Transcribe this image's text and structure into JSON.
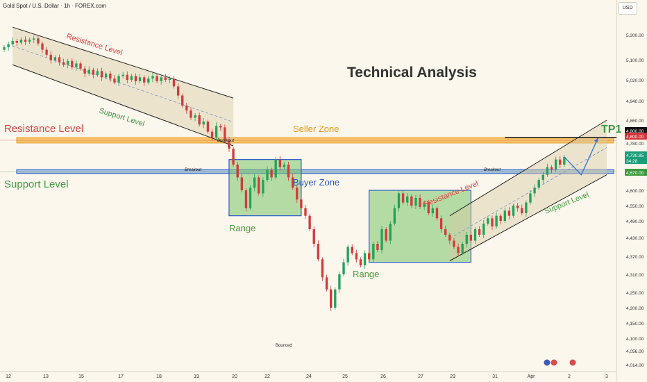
{
  "header": {
    "symbol_title": "Gold Spot / U.S. Dollar · 1h · FOREX.com",
    "currency_button": "USD"
  },
  "colors": {
    "background": "#fbf7ed",
    "bull": "#22a35a",
    "bear": "#d33a3a",
    "resistance_text": "#e04040",
    "support_text": "#3f9a3f",
    "seller_zone_fill": "#f3b13c",
    "buyer_zone_fill": "#5b8fcf",
    "range_box_fill": "#7cc46a",
    "range_box_border": "#2b57c9",
    "zone_label_orange": "#e6991a",
    "zone_label_blue": "#2b57c9",
    "range_label_green": "#4e9b3e",
    "tp_green": "#3a9a46",
    "current_price_bg": "#1c9d7a",
    "tp_price_bg": "#d3343a",
    "projection_blue": "#3d78d8"
  },
  "chart_data": {
    "type": "candlestick",
    "title": "Technical Analysis",
    "instrument": "Gold Spot / U.S. Dollar",
    "timeframe": "1h",
    "y_axis": {
      "ticks": [
        5200,
        5100,
        5020,
        4940,
        4860,
        4780,
        4670,
        4600,
        4550,
        4490,
        4430,
        4370,
        4310,
        4250,
        4200,
        4150,
        4100,
        4056,
        4014
      ],
      "tick_labels": [
        "5,200.00",
        "5,100.00",
        "5,020.00",
        "4,940.00",
        "4,860.00",
        "4,780.00",
        "4,670.00",
        "4,600.00",
        "4,550.00",
        "4,490.00",
        "4,430.00",
        "4,370.00",
        "4,310.00",
        "4,250.00",
        "4,200.00",
        "4,150.00",
        "4,100.00",
        "4,056.00",
        "4,014.00"
      ]
    },
    "x_axis": {
      "tick_labels": [
        "12",
        "13",
        "15",
        "17",
        "18",
        "19",
        "20",
        "22",
        "24",
        "25",
        "26",
        "27",
        "29",
        "31",
        "Apr",
        "2",
        "3"
      ]
    },
    "price_markers": {
      "tp_line_price": "4,800.00",
      "current_price": "4,730.85",
      "countdown": "34:28",
      "breakout_level": "4,670.00"
    },
    "price_series": [
      {
        "x": 0,
        "o": 5140,
        "c": 5150
      },
      {
        "x": 1,
        "o": 5150,
        "c": 5162
      },
      {
        "x": 2,
        "o": 5162,
        "c": 5175
      },
      {
        "x": 3,
        "o": 5175,
        "c": 5168
      },
      {
        "x": 4,
        "o": 5168,
        "c": 5180
      },
      {
        "x": 5,
        "o": 5180,
        "c": 5172
      },
      {
        "x": 6,
        "o": 5172,
        "c": 5180
      },
      {
        "x": 7,
        "o": 5180,
        "c": 5185
      },
      {
        "x": 8,
        "o": 5185,
        "c": 5165
      },
      {
        "x": 9,
        "o": 5165,
        "c": 5140
      },
      {
        "x": 10,
        "o": 5140,
        "c": 5120
      },
      {
        "x": 11,
        "o": 5120,
        "c": 5098
      },
      {
        "x": 12,
        "o": 5098,
        "c": 5110
      },
      {
        "x": 13,
        "o": 5110,
        "c": 5090
      },
      {
        "x": 14,
        "o": 5090,
        "c": 5080
      },
      {
        "x": 15,
        "o": 5080,
        "c": 5095
      },
      {
        "x": 16,
        "o": 5095,
        "c": 5070
      },
      {
        "x": 17,
        "o": 5070,
        "c": 5085
      },
      {
        "x": 18,
        "o": 5085,
        "c": 5065
      },
      {
        "x": 19,
        "o": 5065,
        "c": 5045
      },
      {
        "x": 20,
        "o": 5045,
        "c": 5060
      },
      {
        "x": 21,
        "o": 5060,
        "c": 5040
      },
      {
        "x": 22,
        "o": 5040,
        "c": 5055
      },
      {
        "x": 23,
        "o": 5055,
        "c": 5030
      },
      {
        "x": 24,
        "o": 5030,
        "c": 5045
      },
      {
        "x": 25,
        "o": 5045,
        "c": 5025
      },
      {
        "x": 26,
        "o": 5025,
        "c": 5010
      },
      {
        "x": 27,
        "o": 5010,
        "c": 5035
      },
      {
        "x": 28,
        "o": 5035,
        "c": 5040
      },
      {
        "x": 29,
        "o": 5040,
        "c": 5020
      },
      {
        "x": 30,
        "o": 5020,
        "c": 5035
      },
      {
        "x": 31,
        "o": 5035,
        "c": 5015
      },
      {
        "x": 32,
        "o": 5015,
        "c": 5030
      },
      {
        "x": 33,
        "o": 5030,
        "c": 5010
      },
      {
        "x": 34,
        "o": 5010,
        "c": 5025
      },
      {
        "x": 35,
        "o": 5025,
        "c": 5035
      },
      {
        "x": 36,
        "o": 5035,
        "c": 5015
      },
      {
        "x": 37,
        "o": 5015,
        "c": 5030
      },
      {
        "x": 38,
        "o": 5030,
        "c": 5020
      },
      {
        "x": 39,
        "o": 5020,
        "c": 5025
      },
      {
        "x": 40,
        "o": 5025,
        "c": 4995
      },
      {
        "x": 41,
        "o": 4995,
        "c": 4960
      },
      {
        "x": 42,
        "o": 4960,
        "c": 4920
      },
      {
        "x": 43,
        "o": 4920,
        "c": 4900
      },
      {
        "x": 44,
        "o": 4900,
        "c": 4870
      },
      {
        "x": 45,
        "o": 4870,
        "c": 4880
      },
      {
        "x": 46,
        "o": 4880,
        "c": 4845
      },
      {
        "x": 47,
        "o": 4845,
        "c": 4855
      },
      {
        "x": 48,
        "o": 4855,
        "c": 4820
      },
      {
        "x": 49,
        "o": 4820,
        "c": 4800
      },
      {
        "x": 50,
        "o": 4800,
        "c": 4840
      },
      {
        "x": 51,
        "o": 4840,
        "c": 4835
      },
      {
        "x": 52,
        "o": 4835,
        "c": 4790
      },
      {
        "x": 53,
        "o": 4790,
        "c": 4760
      },
      {
        "x": 54,
        "o": 4760,
        "c": 4700
      },
      {
        "x": 55,
        "o": 4700,
        "c": 4650
      },
      {
        "x": 56,
        "o": 4650,
        "c": 4600
      },
      {
        "x": 57,
        "o": 4600,
        "c": 4540
      },
      {
        "x": 58,
        "o": 4540,
        "c": 4610
      },
      {
        "x": 59,
        "o": 4610,
        "c": 4650
      },
      {
        "x": 60,
        "o": 4650,
        "c": 4590
      },
      {
        "x": 61,
        "o": 4590,
        "c": 4640
      },
      {
        "x": 62,
        "o": 4640,
        "c": 4680
      },
      {
        "x": 63,
        "o": 4680,
        "c": 4650
      },
      {
        "x": 64,
        "o": 4650,
        "c": 4720
      },
      {
        "x": 65,
        "o": 4720,
        "c": 4690
      },
      {
        "x": 66,
        "o": 4690,
        "c": 4700
      },
      {
        "x": 67,
        "o": 4700,
        "c": 4650
      },
      {
        "x": 68,
        "o": 4650,
        "c": 4610
      },
      {
        "x": 69,
        "o": 4610,
        "c": 4570
      },
      {
        "x": 70,
        "o": 4570,
        "c": 4540
      },
      {
        "x": 71,
        "o": 4540,
        "c": 4510
      },
      {
        "x": 72,
        "o": 4510,
        "c": 4460
      },
      {
        "x": 73,
        "o": 4460,
        "c": 4410
      },
      {
        "x": 74,
        "o": 4410,
        "c": 4360
      },
      {
        "x": 75,
        "o": 4360,
        "c": 4300
      },
      {
        "x": 76,
        "o": 4300,
        "c": 4260
      },
      {
        "x": 77,
        "o": 4260,
        "c": 4200
      },
      {
        "x": 78,
        "o": 4200,
        "c": 4260
      },
      {
        "x": 79,
        "o": 4260,
        "c": 4310
      },
      {
        "x": 80,
        "o": 4310,
        "c": 4350
      },
      {
        "x": 81,
        "o": 4350,
        "c": 4400
      },
      {
        "x": 82,
        "o": 4400,
        "c": 4380
      },
      {
        "x": 83,
        "o": 4380,
        "c": 4360
      },
      {
        "x": 84,
        "o": 4360,
        "c": 4340
      },
      {
        "x": 85,
        "o": 4340,
        "c": 4380
      },
      {
        "x": 86,
        "o": 4380,
        "c": 4360
      },
      {
        "x": 87,
        "o": 4360,
        "c": 4410
      },
      {
        "x": 88,
        "o": 4410,
        "c": 4390
      },
      {
        "x": 89,
        "o": 4390,
        "c": 4460
      },
      {
        "x": 90,
        "o": 4460,
        "c": 4420
      },
      {
        "x": 91,
        "o": 4420,
        "c": 4480
      },
      {
        "x": 92,
        "o": 4480,
        "c": 4540
      },
      {
        "x": 93,
        "o": 4540,
        "c": 4590
      },
      {
        "x": 94,
        "o": 4590,
        "c": 4560
      },
      {
        "x": 95,
        "o": 4560,
        "c": 4580
      },
      {
        "x": 96,
        "o": 4580,
        "c": 4550
      },
      {
        "x": 97,
        "o": 4550,
        "c": 4575
      },
      {
        "x": 98,
        "o": 4575,
        "c": 4545
      },
      {
        "x": 99,
        "o": 4545,
        "c": 4560
      },
      {
        "x": 100,
        "o": 4560,
        "c": 4520
      },
      {
        "x": 101,
        "o": 4520,
        "c": 4540
      },
      {
        "x": 102,
        "o": 4540,
        "c": 4500
      },
      {
        "x": 103,
        "o": 4500,
        "c": 4460
      },
      {
        "x": 104,
        "o": 4460,
        "c": 4440
      },
      {
        "x": 105,
        "o": 4440,
        "c": 4420
      },
      {
        "x": 106,
        "o": 4420,
        "c": 4400
      },
      {
        "x": 107,
        "o": 4400,
        "c": 4380
      },
      {
        "x": 108,
        "o": 4380,
        "c": 4410
      },
      {
        "x": 109,
        "o": 4410,
        "c": 4440
      },
      {
        "x": 110,
        "o": 4440,
        "c": 4420
      },
      {
        "x": 111,
        "o": 4420,
        "c": 4460
      },
      {
        "x": 112,
        "o": 4460,
        "c": 4440
      },
      {
        "x": 113,
        "o": 4440,
        "c": 4480
      },
      {
        "x": 114,
        "o": 4480,
        "c": 4500
      },
      {
        "x": 115,
        "o": 4500,
        "c": 4470
      },
      {
        "x": 116,
        "o": 4470,
        "c": 4510
      },
      {
        "x": 117,
        "o": 4510,
        "c": 4490
      },
      {
        "x": 118,
        "o": 4490,
        "c": 4530
      },
      {
        "x": 119,
        "o": 4530,
        "c": 4510
      },
      {
        "x": 120,
        "o": 4510,
        "c": 4550
      },
      {
        "x": 121,
        "o": 4550,
        "c": 4540
      },
      {
        "x": 122,
        "o": 4540,
        "c": 4520
      },
      {
        "x": 123,
        "o": 4520,
        "c": 4560
      },
      {
        "x": 124,
        "o": 4560,
        "c": 4590
      },
      {
        "x": 125,
        "o": 4590,
        "c": 4610
      },
      {
        "x": 126,
        "o": 4610,
        "c": 4640
      },
      {
        "x": 127,
        "o": 4640,
        "c": 4660
      },
      {
        "x": 128,
        "o": 4660,
        "c": 4690
      },
      {
        "x": 129,
        "o": 4690,
        "c": 4680
      },
      {
        "x": 130,
        "o": 4680,
        "c": 4720
      },
      {
        "x": 131,
        "o": 4720,
        "c": 4700
      },
      {
        "x": 132,
        "o": 4700,
        "c": 4730
      }
    ],
    "projection": {
      "label": "",
      "points": [
        {
          "x": 132,
          "y": 4730
        },
        {
          "x": 136,
          "y": 4660
        },
        {
          "x": 140,
          "y": 4800
        }
      ]
    },
    "zones": {
      "seller_zone": {
        "label": "Seller Zone",
        "from": 4780,
        "to": 4800
      },
      "buyer_zone": {
        "label": "Buyer Zone",
        "from": 4665,
        "to": 4680
      },
      "range_1": {
        "label": "Range",
        "x_from": 53,
        "x_to": 70,
        "y_from": 4510,
        "y_to": 4720
      },
      "range_2": {
        "label": "Range",
        "x_from": 86,
        "x_to": 110,
        "y_from": 4350,
        "y_to": 4600
      }
    },
    "annotations": {
      "resistance_left": "Resistance Level",
      "support_left": "Support Level",
      "channel_resistance_top": "Resistance Level",
      "channel_support_top": "Support Level",
      "channel_resistance_right": "Resistance Level",
      "channel_support_right": "Support Level",
      "breakout_1": "Breakout",
      "breakout_2": "Breakout",
      "breakout_3": "Breakout",
      "bounced": "Bounced",
      "tp1": "TP1",
      "seller_zone": "Seller Zone",
      "buyer_zone": "Buyer Zone",
      "range_1": "Range",
      "range_2": "Range",
      "title": "Technical Analysis"
    }
  }
}
